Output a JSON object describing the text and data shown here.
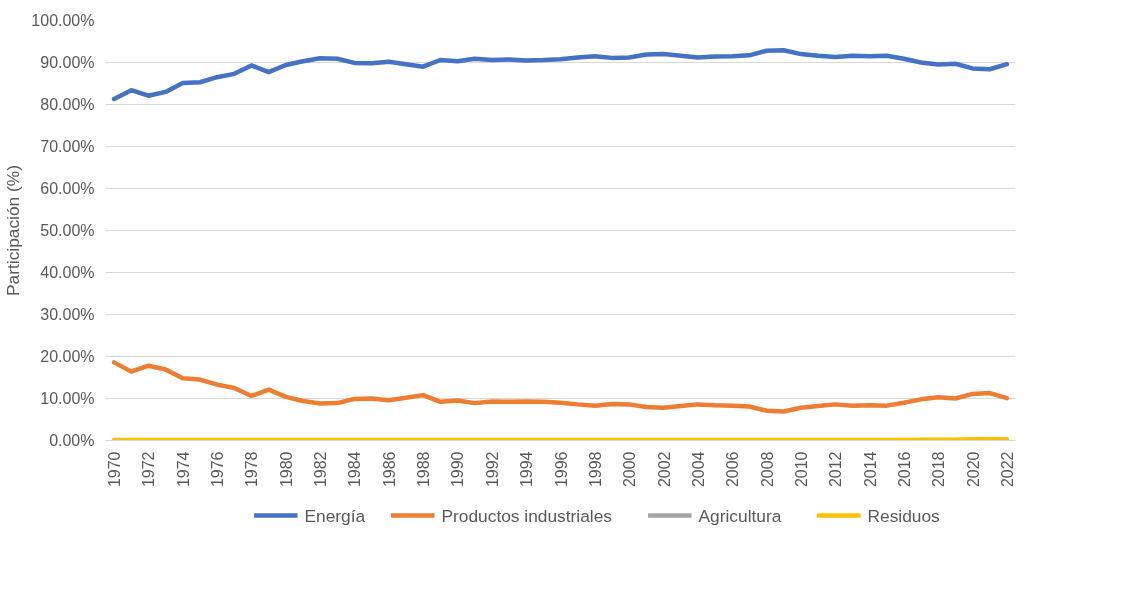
{
  "chart_data": {
    "type": "line",
    "ylabel": "Participación (%)",
    "x": [
      1970,
      1971,
      1972,
      1973,
      1974,
      1975,
      1976,
      1977,
      1978,
      1979,
      1980,
      1981,
      1982,
      1983,
      1984,
      1985,
      1986,
      1987,
      1988,
      1989,
      1990,
      1991,
      1992,
      1993,
      1994,
      1995,
      1996,
      1997,
      1998,
      1999,
      2000,
      2001,
      2002,
      2003,
      2004,
      2005,
      2006,
      2007,
      2008,
      2009,
      2010,
      2011,
      2012,
      2013,
      2014,
      2015,
      2016,
      2017,
      2018,
      2019,
      2020,
      2021,
      2022
    ],
    "xlim": [
      1969.5,
      2022.5
    ],
    "xticks": [
      1970,
      1972,
      1974,
      1976,
      1978,
      1980,
      1982,
      1984,
      1986,
      1988,
      1990,
      1992,
      1994,
      1996,
      1998,
      2000,
      2002,
      2004,
      2006,
      2008,
      2010,
      2012,
      2014,
      2016,
      2018,
      2020,
      2022
    ],
    "ylim": [
      0,
      100
    ],
    "yticks": [
      {
        "value": 0,
        "label": "0.00%"
      },
      {
        "value": 10,
        "label": "10.00%"
      },
      {
        "value": 20,
        "label": "20.00%"
      },
      {
        "value": 30,
        "label": "30.00%"
      },
      {
        "value": 40,
        "label": "40.00%"
      },
      {
        "value": 50,
        "label": "50.00%"
      },
      {
        "value": 60,
        "label": "60.00%"
      },
      {
        "value": 70,
        "label": "70.00%"
      },
      {
        "value": 80,
        "label": "80.00%"
      },
      {
        "value": 90,
        "label": "90.00%"
      },
      {
        "value": 100,
        "label": "100.00%"
      }
    ],
    "grid": "y",
    "legend": "bottom",
    "marker": "none",
    "line_style": "solid",
    "series": [
      {
        "name": "Energía",
        "color": "#4472c4",
        "values": [
          81.3,
          83.4,
          82.1,
          83.0,
          85.1,
          85.3,
          86.5,
          87.3,
          89.3,
          87.7,
          89.4,
          90.3,
          91.0,
          90.9,
          89.9,
          89.8,
          90.2,
          89.6,
          89.0,
          90.6,
          90.3,
          90.9,
          90.6,
          90.7,
          90.5,
          90.6,
          90.8,
          91.2,
          91.5,
          91.1,
          91.2,
          91.9,
          92.0,
          91.6,
          91.2,
          91.4,
          91.5,
          91.7,
          92.8,
          92.9,
          92.0,
          91.6,
          91.3,
          91.6,
          91.5,
          91.6,
          90.9,
          90.0,
          89.5,
          89.7,
          88.6,
          88.4,
          89.6
        ]
      },
      {
        "name": "Productos industriales",
        "color": "#ed7d31",
        "values": [
          18.6,
          16.4,
          17.8,
          16.9,
          14.8,
          14.5,
          13.3,
          12.5,
          10.6,
          12.1,
          10.4,
          9.4,
          8.8,
          8.9,
          9.9,
          10.0,
          9.6,
          10.2,
          10.8,
          9.2,
          9.5,
          8.9,
          9.3,
          9.2,
          9.3,
          9.2,
          9.0,
          8.6,
          8.3,
          8.7,
          8.6,
          8.0,
          7.8,
          8.2,
          8.6,
          8.4,
          8.3,
          8.1,
          7.1,
          6.9,
          7.8,
          8.2,
          8.6,
          8.3,
          8.4,
          8.3,
          9.0,
          9.8,
          10.3,
          10.0,
          11.1,
          11.3,
          10.1
        ]
      },
      {
        "name": "Agricultura",
        "color": "#a5a5a5",
        "values": [
          null,
          null,
          null,
          null,
          null,
          null,
          null,
          null,
          null,
          null,
          null,
          null,
          null,
          null,
          null,
          null,
          null,
          null,
          null,
          null,
          null,
          null,
          null,
          null,
          null,
          null,
          null,
          null,
          null,
          null,
          null,
          null,
          null,
          null,
          null,
          null,
          null,
          null,
          null,
          null,
          null,
          null,
          null,
          null,
          null,
          null,
          null,
          null,
          null,
          null,
          null,
          null,
          null
        ]
      },
      {
        "name": "Residuos",
        "color": "#ffc000",
        "values": [
          0.1,
          0.1,
          0.1,
          0.1,
          0.1,
          0.1,
          0.1,
          0.1,
          0.1,
          0.1,
          0.1,
          0.1,
          0.1,
          0.1,
          0.1,
          0.1,
          0.1,
          0.1,
          0.1,
          0.1,
          0.1,
          0.1,
          0.1,
          0.1,
          0.1,
          0.1,
          0.1,
          0.1,
          0.1,
          0.1,
          0.1,
          0.1,
          0.1,
          0.1,
          0.1,
          0.1,
          0.1,
          0.1,
          0.1,
          0.1,
          0.1,
          0.1,
          0.1,
          0.1,
          0.1,
          0.1,
          0.1,
          0.2,
          0.2,
          0.2,
          0.3,
          0.3,
          0.3
        ]
      }
    ]
  }
}
